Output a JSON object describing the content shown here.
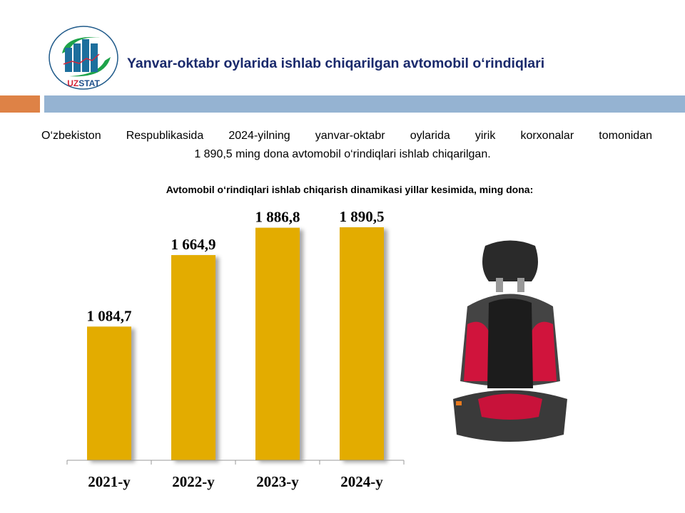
{
  "header": {
    "logo_text": "UZSTAT",
    "title": "Yanvar-oktabr oylarida ishlab chiqarilgan avtomobil o‘rindiqlari"
  },
  "description": {
    "line1": "O‘zbekiston Respublikasida 2024-yilning yanvar-oktabr oylarida yirik korxonalar tomonidan",
    "line2": "1 890,5 ming dona avtomobil o‘rindiqlari ishlab chiqarilgan."
  },
  "colors": {
    "bar": "#e3ac00",
    "accent_orange": "#de8246",
    "accent_blue": "#95b3d2",
    "title": "#1a2a6c"
  },
  "image": {
    "icon": "car-seat-image"
  },
  "chart_data": {
    "type": "bar",
    "title": "Avtomobil o‘rindiqlari ishlab chiqarish dinamikasi yillar kesimida, ming dona:",
    "categories": [
      "2021-y",
      "2022-y",
      "2023-y",
      "2024-y"
    ],
    "values": [
      1084.7,
      1664.9,
      1886.8,
      1890.5
    ],
    "data_labels": [
      "1 084,7",
      "1 664,9",
      "1 886,8",
      "1 890,5"
    ],
    "ylim": [
      0,
      1890.5
    ],
    "grid": false,
    "legend": "none"
  }
}
